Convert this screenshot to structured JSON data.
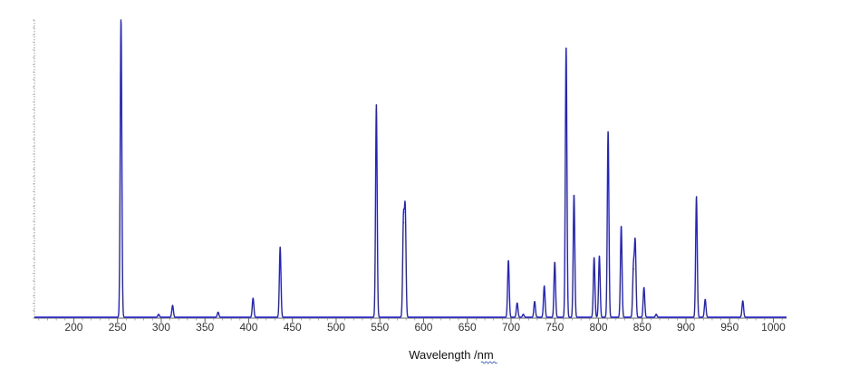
{
  "chart_data": {
    "type": "line",
    "title": "",
    "xlabel": "Wavelength /nm",
    "ylabel": "",
    "xlim": [
      155,
      1015
    ],
    "ylim": [
      0,
      1.0
    ],
    "x_ticks": [
      200,
      250,
      300,
      350,
      400,
      450,
      500,
      550,
      600,
      650,
      700,
      750,
      800,
      850,
      900,
      950,
      1000
    ],
    "x_tick_labels": [
      "200",
      "250",
      "300",
      "350",
      "400",
      "450",
      "500",
      "550",
      "600",
      "650",
      "700",
      "750",
      "800",
      "850",
      "900",
      "950",
      "1000"
    ],
    "grid": false,
    "legend": "none",
    "line_color": "#2222cc",
    "axis_color": "#999999",
    "series": [
      {
        "peaks": [
          {
            "x": 254,
            "y": 1.0
          },
          {
            "x": 297,
            "y": 0.01
          },
          {
            "x": 313,
            "y": 0.04
          },
          {
            "x": 365,
            "y": 0.017
          },
          {
            "x": 405,
            "y": 0.064
          },
          {
            "x": 436,
            "y": 0.235
          },
          {
            "x": 546,
            "y": 0.713
          },
          {
            "x": 577,
            "y": 0.32
          },
          {
            "x": 579,
            "y": 0.355
          },
          {
            "x": 697,
            "y": 0.19
          },
          {
            "x": 707,
            "y": 0.048
          },
          {
            "x": 714,
            "y": 0.01
          },
          {
            "x": 727,
            "y": 0.053
          },
          {
            "x": 738,
            "y": 0.105
          },
          {
            "x": 750,
            "y": 0.185
          },
          {
            "x": 763,
            "y": 0.905
          },
          {
            "x": 772,
            "y": 0.41
          },
          {
            "x": 795,
            "y": 0.2
          },
          {
            "x": 801,
            "y": 0.205
          },
          {
            "x": 811,
            "y": 0.625
          },
          {
            "x": 826,
            "y": 0.305
          },
          {
            "x": 840,
            "y": 0.165
          },
          {
            "x": 842,
            "y": 0.25
          },
          {
            "x": 852,
            "y": 0.1
          },
          {
            "x": 866,
            "y": 0.01
          },
          {
            "x": 912,
            "y": 0.405
          },
          {
            "x": 922,
            "y": 0.06
          },
          {
            "x": 965,
            "y": 0.055
          }
        ]
      }
    ]
  }
}
